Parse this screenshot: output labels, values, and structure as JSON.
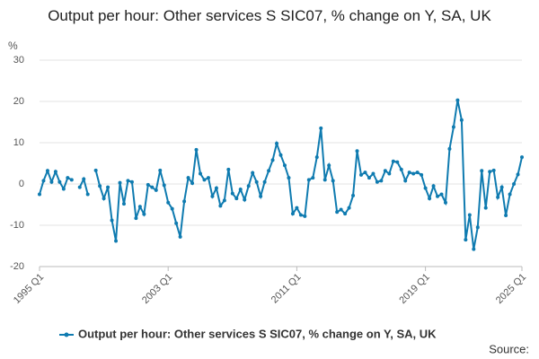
{
  "chart_data": {
    "type": "line",
    "title": "Output per hour: Other services S SIC07, % change on Y, SA, UK",
    "y_label": "%",
    "source_label": "Source:",
    "categories": [
      "1995 Q1",
      null,
      null,
      null,
      null,
      null,
      null,
      null,
      null,
      null,
      null,
      null,
      null,
      null,
      null,
      null,
      null,
      null,
      null,
      null,
      null,
      null,
      null,
      null,
      null,
      null,
      null,
      null,
      null,
      null,
      null,
      null,
      "2003 Q1",
      null,
      null,
      null,
      null,
      null,
      null,
      null,
      null,
      null,
      null,
      null,
      null,
      null,
      null,
      null,
      null,
      null,
      null,
      null,
      null,
      null,
      null,
      null,
      null,
      null,
      null,
      null,
      null,
      null,
      null,
      null,
      "2011 Q1",
      null,
      null,
      null,
      null,
      null,
      null,
      null,
      null,
      null,
      null,
      null,
      null,
      null,
      null,
      null,
      null,
      null,
      null,
      null,
      null,
      null,
      null,
      null,
      null,
      null,
      null,
      null,
      null,
      null,
      null,
      null,
      "2019 Q1",
      null,
      null,
      null,
      null,
      null,
      null,
      null,
      null,
      null,
      null,
      null,
      null,
      null,
      null,
      null,
      null,
      null,
      null,
      null,
      null,
      null,
      null,
      null,
      "2025 Q1"
    ],
    "series": [
      {
        "name": "Output per hour: Other services S SIC07, % change on Y, SA, UK",
        "color": "#0f7bb0",
        "values": [
          -2.5,
          0.8,
          3.2,
          0.5,
          3,
          0.5,
          -1.2,
          1.5,
          1,
          null,
          -0.8,
          1.2,
          -2.5,
          null,
          3.3,
          -0.5,
          -3.5,
          -0.8,
          -8.8,
          -13.8,
          0.3,
          -4.8,
          0.8,
          0.5,
          -8.3,
          -5.5,
          -7.3,
          -0.2,
          -0.8,
          -1.5,
          3.3,
          -0.3,
          -4.5,
          -6,
          -9.5,
          -12.8,
          -4.2,
          1.5,
          0.2,
          8.3,
          2.5,
          1,
          1.5,
          -3,
          -1,
          -5.3,
          -4,
          3.5,
          -2.3,
          -3.5,
          -1.3,
          -3.8,
          -0.5,
          2.7,
          0.5,
          -3,
          0.5,
          3.2,
          5.8,
          9.8,
          7,
          4.5,
          1.5,
          -7.2,
          -5.8,
          -7.5,
          -7.8,
          1,
          1.5,
          6.5,
          13.5,
          1,
          4.5,
          0.8,
          -6.8,
          -6.2,
          -7.2,
          -5.8,
          -2.8,
          8,
          2.2,
          2.8,
          1.5,
          2.5,
          0.5,
          0.8,
          3.2,
          2.5,
          5.5,
          5.3,
          3.5,
          0.8,
          2.8,
          2.5,
          2.8,
          2.2,
          -1,
          -3.5,
          -0.5,
          -3,
          -2.5,
          -4.5,
          8.5,
          13.8,
          20.3,
          15.5,
          -13.5,
          -7.5,
          -15.8,
          -10.5,
          3.2,
          -5.8,
          3,
          3.3,
          -3.2,
          -0.8,
          -7.6,
          -2.5,
          0,
          2.3,
          6.5
        ]
      }
    ],
    "ylim": [
      -20,
      30
    ],
    "yticks": [
      -20,
      -10,
      0,
      10,
      20,
      30
    ],
    "grid": true,
    "legend": "bottom"
  }
}
